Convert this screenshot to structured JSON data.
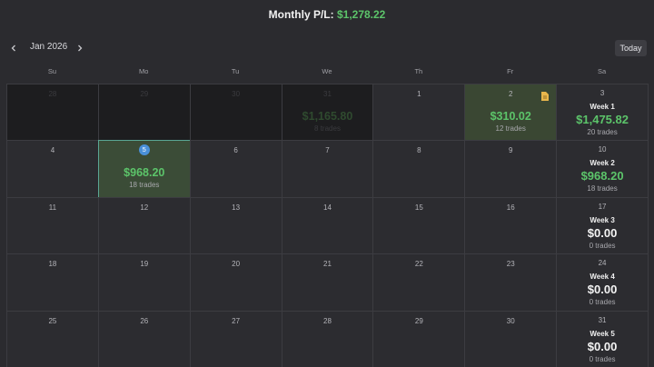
{
  "header": {
    "title": "Monthly P/L:",
    "value": "$1,278.22"
  },
  "nav": {
    "month": "Jan 2026",
    "today_button": "Today"
  },
  "weekdays": [
    "Su",
    "Mo",
    "Tu",
    "We",
    "Th",
    "Fr",
    "Sa"
  ],
  "weeks": [
    {
      "days": [
        {
          "day": "28",
          "other_month": true
        },
        {
          "day": "29",
          "other_month": true
        },
        {
          "day": "30",
          "other_month": true
        },
        {
          "day": "31",
          "other_month": true,
          "pnl": "$1,165.80",
          "trades": "8 trades"
        },
        {
          "day": "1"
        },
        {
          "day": "2",
          "pnl": "$310.02",
          "trades": "12 trades",
          "note": true
        },
        {
          "day": "3"
        }
      ],
      "summary": {
        "label": "Week 1",
        "pnl": "$1,475.82",
        "trades": "20 trades",
        "profit": true
      }
    },
    {
      "days": [
        {
          "day": "4"
        },
        {
          "day": "5",
          "today": true,
          "pnl": "$968.20",
          "trades": "18 trades"
        },
        {
          "day": "6"
        },
        {
          "day": "7"
        },
        {
          "day": "8"
        },
        {
          "day": "9"
        },
        {
          "day": "10"
        }
      ],
      "summary": {
        "label": "Week 2",
        "pnl": "$968.20",
        "trades": "18 trades",
        "profit": true
      }
    },
    {
      "days": [
        {
          "day": "11"
        },
        {
          "day": "12"
        },
        {
          "day": "13"
        },
        {
          "day": "14"
        },
        {
          "day": "15"
        },
        {
          "day": "16"
        },
        {
          "day": "17"
        }
      ],
      "summary": {
        "label": "Week 3",
        "pnl": "$0.00",
        "trades": "0 trades"
      }
    },
    {
      "days": [
        {
          "day": "18"
        },
        {
          "day": "19"
        },
        {
          "day": "20"
        },
        {
          "day": "21"
        },
        {
          "day": "22"
        },
        {
          "day": "23"
        },
        {
          "day": "24"
        }
      ],
      "summary": {
        "label": "Week 4",
        "pnl": "$0.00",
        "trades": "0 trades"
      }
    },
    {
      "days": [
        {
          "day": "25"
        },
        {
          "day": "26"
        },
        {
          "day": "27"
        },
        {
          "day": "28"
        },
        {
          "day": "29"
        },
        {
          "day": "30"
        },
        {
          "day": "31"
        }
      ],
      "summary": {
        "label": "Week 5",
        "pnl": "$0.00",
        "trades": "0 trades"
      }
    }
  ]
}
